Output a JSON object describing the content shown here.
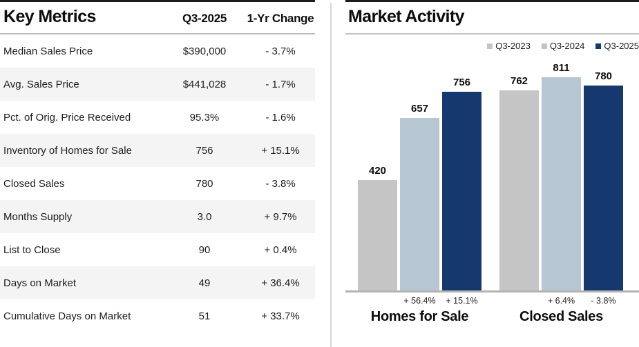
{
  "key_metrics": {
    "title": "Key Metrics",
    "col_value": "Q3-2025",
    "col_change": "1-Yr Change",
    "rows": [
      {
        "label": "Median Sales Price",
        "value": "$390,000",
        "change": "- 3.7%"
      },
      {
        "label": "Avg. Sales Price",
        "value": "$441,028",
        "change": "- 1.7%"
      },
      {
        "label": "Pct. of Orig. Price Received",
        "value": "95.3%",
        "change": "- 1.6%"
      },
      {
        "label": "Inventory of Homes for Sale",
        "value": "756",
        "change": "+ 15.1%"
      },
      {
        "label": "Closed Sales",
        "value": "780",
        "change": "- 3.8%"
      },
      {
        "label": "Months Supply",
        "value": "3.0",
        "change": "+ 9.7%"
      },
      {
        "label": "List to Close",
        "value": "90",
        "change": "+ 0.4%"
      },
      {
        "label": "Days on Market",
        "value": "49",
        "change": "+ 36.4%"
      },
      {
        "label": "Cumulative Days on Market",
        "value": "51",
        "change": "+ 33.7%"
      }
    ]
  },
  "market_activity": {
    "title": "Market Activity"
  },
  "chart_data": {
    "type": "bar",
    "title": "Market Activity",
    "categories": [
      "Homes for Sale",
      "Closed Sales"
    ],
    "series": [
      {
        "name": "Q3-2023",
        "color": "#c5c5c5",
        "values": [
          420,
          762
        ],
        "changes": [
          "",
          ""
        ]
      },
      {
        "name": "Q3-2024",
        "color": "#b7c6d3",
        "values": [
          657,
          811
        ],
        "changes": [
          "+ 56.4%",
          "+ 6.4%"
        ]
      },
      {
        "name": "Q3-2025",
        "color": "#15396e",
        "values": [
          756,
          780
        ],
        "changes": [
          "+ 15.1%",
          "- 3.8%"
        ]
      }
    ],
    "xlabel": "",
    "ylabel": "",
    "ylim": [
      0,
      811
    ],
    "grid": false,
    "legend_position": "top-right",
    "baseline_color": "#b3b3b3"
  }
}
